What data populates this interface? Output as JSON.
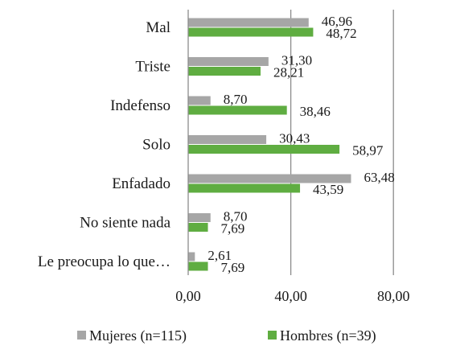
{
  "chart_data": {
    "type": "bar",
    "orientation": "horizontal",
    "categories": [
      "Mal",
      "Triste",
      "Indefenso",
      "Solo",
      "Enfadado",
      "No siente nada",
      "Le preocupa lo que…"
    ],
    "series": [
      {
        "name": "Mujeres (n=115)",
        "color": "#a6a6a6",
        "values": [
          46.96,
          31.3,
          8.7,
          30.43,
          63.48,
          8.7,
          2.61
        ],
        "labels": [
          "46,96",
          "31,30",
          "8,70",
          "30,43",
          "63,48",
          "8,70",
          "2,61"
        ]
      },
      {
        "name": "Hombres (n=39)",
        "color": "#5fad41",
        "values": [
          48.72,
          28.21,
          38.46,
          58.97,
          43.59,
          7.69,
          7.69
        ],
        "labels": [
          "48,72",
          "28,21",
          "38,46",
          "58,97",
          "43,59",
          "7,69",
          "7,69"
        ]
      }
    ],
    "xlim": [
      0,
      100
    ],
    "xticks": [
      0,
      40,
      80
    ],
    "xtick_labels": [
      "0,00",
      "40,00",
      "80,00"
    ],
    "grid": true,
    "legend_position": "bottom"
  }
}
